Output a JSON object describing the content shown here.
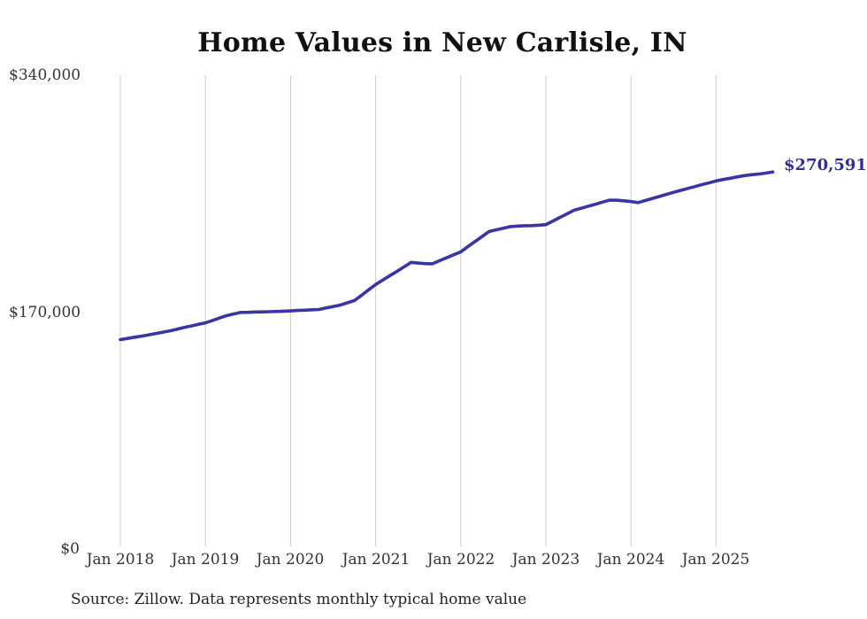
{
  "colors": {
    "line": "#3a35a3",
    "end_label": "#2f2d96",
    "gridline": "#cccccc",
    "axis_text": "#333333",
    "title_text": "#111111",
    "source_text": "#222222",
    "background": "#ffffff"
  },
  "end_label": {
    "text": "$270,591",
    "value": 270591
  },
  "source": {
    "text": "Source: Zillow. Data represents monthly typical home value"
  },
  "chart_data": {
    "type": "line",
    "title": "Home Values in New Carlisle, IN",
    "xlabel": "",
    "ylabel": "",
    "ylim": [
      0,
      340000
    ],
    "grid": "vertical-only",
    "legend": "none",
    "y_tick_labels": [
      "$340,000",
      "$170,000",
      "$0"
    ],
    "y_tick_values": [
      340000,
      170000,
      0
    ],
    "x_tick_labels": [
      "Jan 2018",
      "Jan 2019",
      "Jan 2020",
      "Jan 2021",
      "Jan 2022",
      "Jan 2023",
      "Jan 2024",
      "Jan 2025"
    ],
    "unit": "USD",
    "series": [
      {
        "name": "Monthly typical home value",
        "final_value": 270591,
        "x": [
          "2018-01",
          "2018-02",
          "2018-03",
          "2018-04",
          "2018-05",
          "2018-06",
          "2018-07",
          "2018-08",
          "2018-09",
          "2018-10",
          "2018-11",
          "2018-12",
          "2019-01",
          "2019-02",
          "2019-03",
          "2019-04",
          "2019-05",
          "2019-06",
          "2019-07",
          "2019-08",
          "2019-09",
          "2019-10",
          "2019-11",
          "2019-12",
          "2020-01",
          "2020-02",
          "2020-03",
          "2020-04",
          "2020-05",
          "2020-06",
          "2020-07",
          "2020-08",
          "2020-09",
          "2020-10",
          "2020-11",
          "2020-12",
          "2021-01",
          "2021-02",
          "2021-03",
          "2021-04",
          "2021-05",
          "2021-06",
          "2021-07",
          "2021-08",
          "2021-09",
          "2021-10",
          "2021-11",
          "2021-12",
          "2022-01",
          "2022-02",
          "2022-03",
          "2022-04",
          "2022-05",
          "2022-06",
          "2022-07",
          "2022-08",
          "2022-09",
          "2022-10",
          "2022-11",
          "2022-12",
          "2023-01",
          "2023-02",
          "2023-03",
          "2023-04",
          "2023-05",
          "2023-06",
          "2023-07",
          "2023-08",
          "2023-09",
          "2023-10",
          "2023-11",
          "2023-12",
          "2024-01",
          "2024-02",
          "2024-03",
          "2024-04",
          "2024-05",
          "2024-06",
          "2024-07",
          "2024-08",
          "2024-09",
          "2024-10",
          "2024-11",
          "2024-12",
          "2025-01",
          "2025-02",
          "2025-03",
          "2025-04",
          "2025-05",
          "2025-06",
          "2025-07",
          "2025-08",
          "2025-09"
        ],
        "values": [
          150300,
          151100,
          152000,
          152800,
          153750,
          154700,
          155650,
          156600,
          157800,
          159000,
          160100,
          161300,
          162300,
          164000,
          165800,
          167500,
          168700,
          169800,
          169900,
          170100,
          170200,
          170300,
          170500,
          170700,
          170900,
          171200,
          171400,
          171700,
          171900,
          173000,
          174000,
          175100,
          176700,
          178300,
          182100,
          186000,
          189800,
          193000,
          196200,
          199300,
          202500,
          205700,
          205200,
          204800,
          204700,
          206900,
          209000,
          211200,
          213300,
          217000,
          220600,
          224300,
          227900,
          229100,
          230200,
          231400,
          231800,
          232000,
          232100,
          232400,
          232800,
          235400,
          238000,
          240600,
          243200,
          244600,
          246100,
          247500,
          249000,
          250400,
          250300,
          249900,
          249400,
          248600,
          250100,
          251600,
          253000,
          254500,
          256000,
          257400,
          258700,
          260100,
          261500,
          262800,
          264200,
          265200,
          266100,
          267100,
          268000,
          268600,
          269100,
          269800,
          270591
        ]
      }
    ]
  }
}
